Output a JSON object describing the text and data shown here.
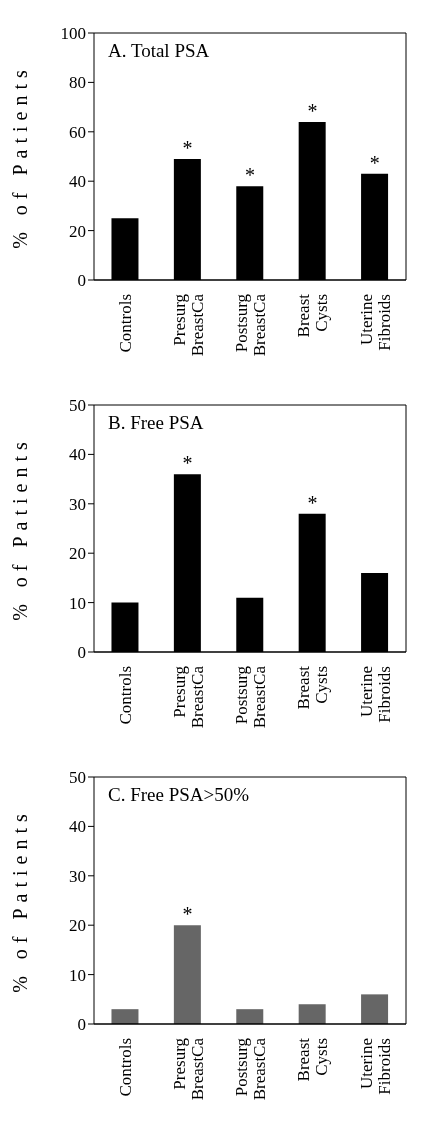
{
  "chart_data": [
    {
      "type": "bar",
      "title": "A. Total PSA",
      "ylabel": "% of Patients",
      "categories": [
        "Controls",
        "Presurg BreastCa",
        "Postsurg BreastCa",
        "Breast Cysts",
        "Uterine Fibroids"
      ],
      "values": [
        25,
        49,
        38,
        64,
        43
      ],
      "color": "#000000",
      "ylim": [
        0,
        100
      ],
      "yticks": [
        0,
        20,
        40,
        60,
        80,
        100
      ],
      "grid": false,
      "annotations": [
        {
          "text": "*",
          "x": "Presurg BreastCa",
          "y": 49
        },
        {
          "text": "*",
          "x": "Postsurg BreastCa",
          "y": 38
        },
        {
          "text": "*",
          "x": "Breast Cysts",
          "y": 64
        },
        {
          "text": "*",
          "x": "Uterine Fibroids",
          "y": 43
        }
      ]
    },
    {
      "type": "bar",
      "title": "B. Free PSA",
      "ylabel": "% of Patients",
      "categories": [
        "Controls",
        "Presurg BreastCa",
        "Postsurg BreastCa",
        "Breast Cysts",
        "Uterine Fibroids"
      ],
      "values": [
        10,
        36,
        11,
        28,
        16
      ],
      "color": "#000000",
      "ylim": [
        0,
        50
      ],
      "yticks": [
        0,
        10,
        20,
        30,
        40,
        50
      ],
      "grid": false,
      "annotations": [
        {
          "text": "*",
          "x": "Presurg BreastCa",
          "y": 36
        },
        {
          "text": "*",
          "x": "Breast Cysts",
          "y": 28
        }
      ]
    },
    {
      "type": "bar",
      "title": "C. Free PSA>50%",
      "ylabel": "% of Patients",
      "categories": [
        "Controls",
        "Presurg BreastCa",
        "Postsurg BreastCa",
        "Breast Cysts",
        "Uterine Fibroids"
      ],
      "values": [
        3,
        20,
        3,
        4,
        6
      ],
      "color": "#666666",
      "ylim": [
        0,
        50
      ],
      "yticks": [
        0,
        10,
        20,
        30,
        40,
        50
      ],
      "grid": false,
      "annotations": [
        {
          "text": "*",
          "x": "Presurg BreastCa",
          "y": 20
        }
      ]
    }
  ]
}
